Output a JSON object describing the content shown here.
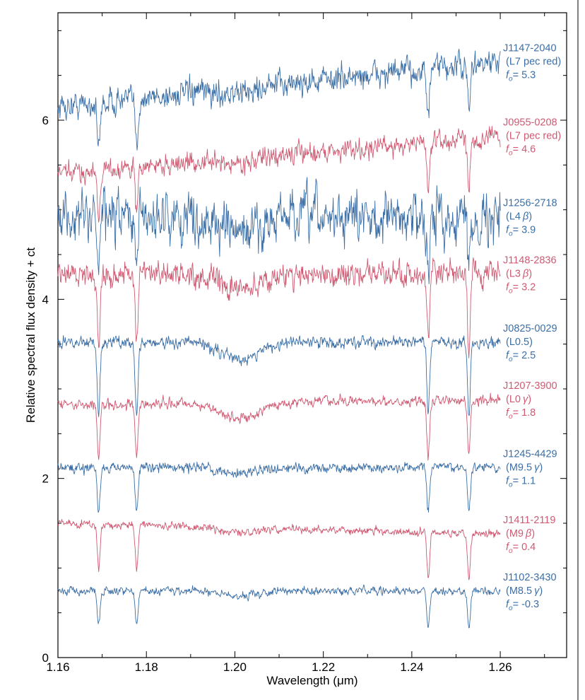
{
  "chart_data": {
    "type": "line",
    "title": "",
    "xlabel": "Wavelength (μm)",
    "ylabel": "Relative spectral flux density + ct",
    "xlim": [
      1.16,
      1.275
    ],
    "ylim": [
      0,
      7.2
    ],
    "x_ticks": [
      "1.16",
      "1.18",
      "1.20",
      "1.22",
      "1.24",
      "1.26"
    ],
    "y_ticks": [
      "0",
      "2",
      "4",
      "6"
    ],
    "x_range": [
      1.16,
      1.26
    ],
    "absorption_lines_um": [
      1.1692,
      1.1778,
      1.2437,
      1.2529
    ],
    "colors": {
      "blue": "#3c6fa6",
      "red": "#cf5a72"
    },
    "series": [
      {
        "name": "J1147-2040",
        "type": "L7 pec red",
        "greek": "",
        "fo": "5.3",
        "color": "blue",
        "start": 6.15,
        "end": 6.65,
        "noise": 0.13,
        "line_depth": 0.55
      },
      {
        "name": "J0955-0208",
        "type": "L7 pec red",
        "greek": "",
        "fo": "4.6",
        "color": "red",
        "start": 5.4,
        "end": 5.82,
        "noise": 0.1,
        "line_depth": 0.5
      },
      {
        "name": "J1256-2718",
        "type": "L4",
        "greek": "β",
        "fo": "3.9",
        "color": "blue",
        "start": 4.92,
        "end": 4.92,
        "noise": 0.24,
        "line_depth": 0.55
      },
      {
        "name": "J1148-2836",
        "type": "L3",
        "greek": "β",
        "fo": "3.2",
        "color": "red",
        "start": 4.28,
        "end": 4.28,
        "noise": 0.12,
        "line_depth": 0.8
      },
      {
        "name": "J0825-0029",
        "type": "L0.5",
        "greek": "",
        "fo": "2.5",
        "color": "blue",
        "start": 3.52,
        "end": 3.52,
        "noise": 0.06,
        "line_depth": 0.8
      },
      {
        "name": "J1207-3900",
        "type": "L0",
        "greek": "γ",
        "fo": "1.8",
        "color": "red",
        "start": 2.82,
        "end": 2.88,
        "noise": 0.05,
        "line_depth": 0.6
      },
      {
        "name": "J1245-4429",
        "type": "M9.5",
        "greek": "γ",
        "fo": "1.1",
        "color": "blue",
        "start": 2.12,
        "end": 2.12,
        "noise": 0.05,
        "line_depth": 0.48
      },
      {
        "name": "J1411-2119",
        "type": "M9",
        "greek": "β",
        "fo": "0.4",
        "color": "red",
        "start": 1.5,
        "end": 1.38,
        "noise": 0.04,
        "line_depth": 0.5
      },
      {
        "name": "J1102-3430",
        "type": "M8.5",
        "greek": "γ",
        "fo": "-0.3",
        "color": "blue",
        "start": 0.75,
        "end": 0.74,
        "noise": 0.04,
        "line_depth": 0.4
      }
    ]
  }
}
